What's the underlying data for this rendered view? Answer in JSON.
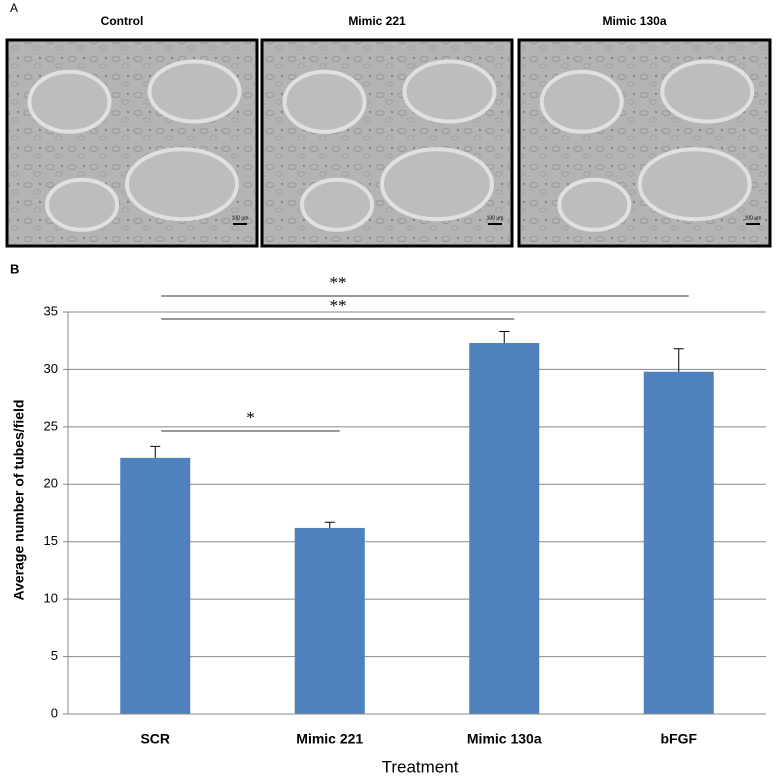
{
  "panel_a": {
    "label": "A",
    "images": [
      {
        "title": "Control",
        "scale_label": "100 µm"
      },
      {
        "title": "Mimic 221",
        "scale_label": "100 µm"
      },
      {
        "title": "Mimic 130a",
        "scale_label": "100 µm"
      }
    ]
  },
  "chart_data": {
    "type": "bar",
    "panel_label": "B",
    "categories": [
      "SCR",
      "Mimic 221",
      "Mimic 130a",
      "bFGF"
    ],
    "values": [
      22.3,
      16.2,
      32.3,
      29.8
    ],
    "errors": [
      1.0,
      0.5,
      1.0,
      2.0
    ],
    "color": "#4f81bd",
    "ylim": [
      0,
      35
    ],
    "yticks": [
      0,
      5,
      10,
      15,
      20,
      25,
      30,
      35
    ],
    "grid": true,
    "y_label": "Average number of tubes/field",
    "x_label": "Treatment",
    "significance": [
      {
        "label": "*",
        "from": 0,
        "to": 1
      },
      {
        "label": "**",
        "from": 0,
        "to": 2
      },
      {
        "label": "**",
        "from": 0,
        "to": 3
      }
    ]
  }
}
